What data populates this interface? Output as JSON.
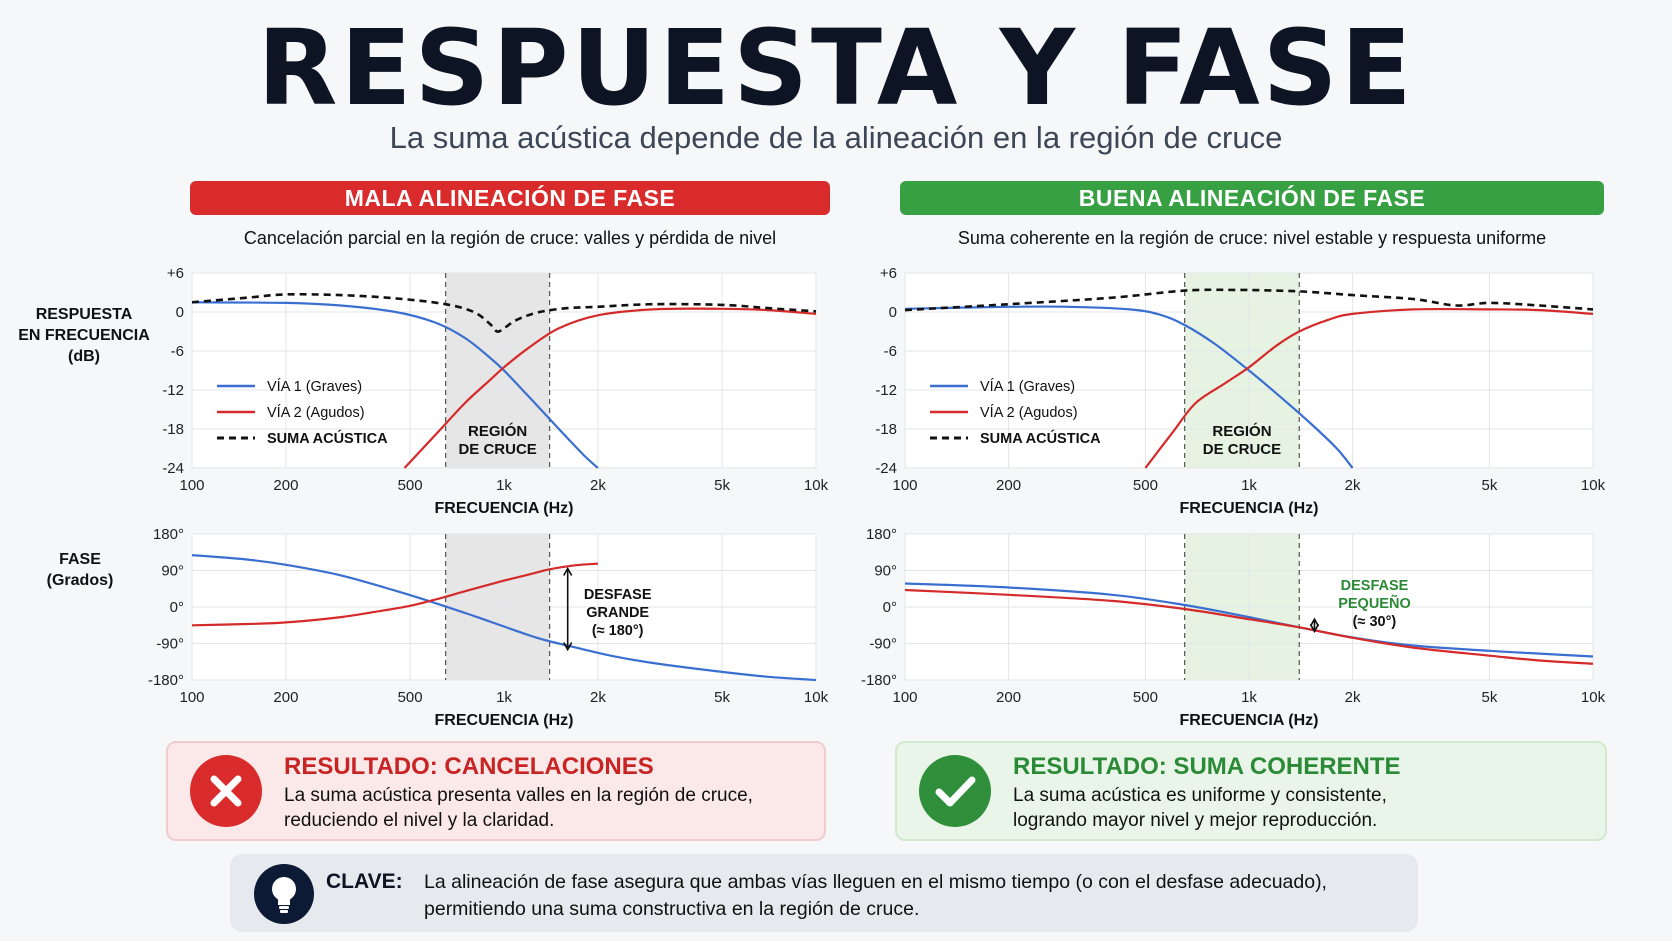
{
  "header": {
    "title": "RESPUESTA Y FASE",
    "subtitle": "La suma acústica depende de la alineación en la región de cruce"
  },
  "panels": {
    "bad": {
      "banner": "MALA ALINEACIÓN DE FASE",
      "caption": "Cancelación parcial en la región de cruce: valles y pérdida de nivel",
      "color": "#d92b2b"
    },
    "good": {
      "banner": "BUENA ALINEACIÓN DE FASE",
      "caption": "Suma coherente en la región de cruce: nivel estable y respuesta uniforme",
      "color": "#36a043"
    }
  },
  "side_labels": {
    "response": [
      "RESPUESTA",
      "EN FRECUENCIA",
      "(dB)"
    ],
    "phase": [
      "FASE",
      "(Grados)"
    ]
  },
  "results": {
    "bad": {
      "title": "RESULTADO: CANCELACIONES",
      "line1": "La suma acústica presenta valles en la región de cruce,",
      "line2": "reduciendo el nivel y la claridad."
    },
    "good": {
      "title": "RESULTADO: SUMA COHERENTE",
      "line1": "La suma acústica es uniforme y consistente,",
      "line2": "logrando mayor nivel y mejor reproducción."
    }
  },
  "key": {
    "title": "CLAVE:",
    "line1": "La alineación de fase asegura que ambas vías lleguen en el mismo tiempo (o con el desfase adecuado),",
    "line2": "permitiendo una suma constructiva en la región de cruce."
  },
  "colors": {
    "via1": "#3a6fd1",
    "via2": "#d42a2a",
    "suma": "#111111",
    "region_bad": "#e6e6e6",
    "region_good": "#e6f2e2"
  },
  "chart_data": [
    {
      "id": "bad-response",
      "type": "line",
      "xscale": "log",
      "xlabel": "FRECUENCIA (Hz)",
      "x_ticks": [
        100,
        200,
        500,
        1000,
        2000,
        5000,
        10000
      ],
      "x_tick_labels": [
        "100",
        "200",
        "500",
        "1k",
        "2k",
        "5k",
        "10k"
      ],
      "xlim": [
        100,
        10000
      ],
      "ylim": [
        -24,
        6
      ],
      "y_ticks": [
        6,
        0,
        -6,
        -12,
        -18,
        -24
      ],
      "y_tick_labels": [
        "+6",
        "0",
        "-6",
        "-12",
        "-18",
        "-24"
      ],
      "region": {
        "x": [
          650,
          1400
        ],
        "label": [
          "REGIÓN",
          "DE CRUCE"
        ]
      },
      "legend": {
        "placement": "left",
        "entries": [
          "VÍA 1 (Graves)",
          "VÍA 2 (Agudos)",
          "SUMA ACÚSTICA"
        ]
      },
      "series": [
        {
          "name": "VÍA 1 (Graves)",
          "x": [
            100,
            200,
            300,
            450,
            600,
            750,
            900,
            1000,
            1200,
            1500,
            1800,
            2000
          ],
          "y": [
            1.5,
            1.4,
            1,
            0,
            -1.6,
            -4,
            -7,
            -9,
            -13,
            -18,
            -22,
            -24
          ]
        },
        {
          "name": "VÍA 2 (Agudos)",
          "x": [
            480,
            600,
            750,
            900,
            1000,
            1200,
            1500,
            2000,
            3000,
            5000,
            7000,
            10000
          ],
          "y": [
            -24,
            -19,
            -14,
            -10.5,
            -8.5,
            -5.5,
            -2.5,
            -0.5,
            0.4,
            0.5,
            0.3,
            -0.3
          ]
        },
        {
          "name": "SUMA ACÚSTICA",
          "x": [
            100,
            150,
            200,
            300,
            450,
            650,
            800,
            900,
            950,
            1000,
            1100,
            1300,
            1600,
            2000,
            3000,
            5000,
            7000,
            10000
          ],
          "y": [
            1.5,
            2.2,
            2.7,
            2.6,
            2.1,
            1.2,
            0,
            -1.8,
            -3,
            -2.5,
            -1.2,
            0,
            0.6,
            0.8,
            1.2,
            1.1,
            0.6,
            0.1
          ]
        }
      ]
    },
    {
      "id": "good-response",
      "type": "line",
      "xscale": "log",
      "xlabel": "FRECUENCIA (Hz)",
      "x_ticks": [
        100,
        200,
        500,
        1000,
        2000,
        5000,
        10000
      ],
      "x_tick_labels": [
        "100",
        "200",
        "500",
        "1k",
        "2k",
        "5k",
        "10k"
      ],
      "xlim": [
        100,
        10000
      ],
      "ylim": [
        -24,
        6
      ],
      "y_ticks": [
        6,
        0,
        -6,
        -12,
        -18,
        -24
      ],
      "y_tick_labels": [
        "+6",
        "0",
        "-6",
        "-12",
        "-18",
        "-24"
      ],
      "region": {
        "x": [
          650,
          1400
        ],
        "label": [
          "REGIÓN",
          "DE CRUCE"
        ]
      },
      "legend": {
        "placement": "left",
        "entries": [
          "VÍA 1 (Graves)",
          "VÍA 2 (Agudos)",
          "SUMA ACÚSTICA"
        ]
      },
      "series": [
        {
          "name": "VÍA 1 (Graves)",
          "x": [
            100,
            200,
            300,
            450,
            550,
            650,
            800,
            1000,
            1200,
            1500,
            1800,
            2000
          ],
          "y": [
            0.5,
            0.8,
            0.8,
            0.4,
            -0.4,
            -2,
            -5,
            -9,
            -12.5,
            -17,
            -21,
            -24
          ]
        },
        {
          "name": "VÍA 2 (Agudos)",
          "x": [
            500,
            600,
            700,
            850,
            1000,
            1200,
            1400,
            1700,
            2000,
            3000,
            5000,
            7000,
            10000
          ],
          "y": [
            -24,
            -18.5,
            -14,
            -11,
            -8.5,
            -5.2,
            -3,
            -1.2,
            -0.3,
            0.4,
            0.4,
            0.3,
            -0.3
          ]
        },
        {
          "name": "SUMA ACÚSTICA",
          "x": [
            100,
            200,
            400,
            650,
            900,
            1200,
            1500,
            2000,
            3000,
            4000,
            5000,
            7000,
            10000
          ],
          "y": [
            0.3,
            1.2,
            2.2,
            3.3,
            3.4,
            3.3,
            3.1,
            2.6,
            2,
            1,
            1.4,
            1,
            0.4
          ]
        }
      ]
    },
    {
      "id": "bad-phase",
      "type": "line",
      "xscale": "log",
      "xlabel": "FRECUENCIA (Hz)",
      "x_ticks": [
        100,
        200,
        500,
        1000,
        2000,
        5000,
        10000
      ],
      "x_tick_labels": [
        "100",
        "200",
        "500",
        "1k",
        "2k",
        "5k",
        "10k"
      ],
      "xlim": [
        100,
        10000
      ],
      "ylim": [
        -180,
        180
      ],
      "y_ticks": [
        180,
        90,
        0,
        -90,
        -180
      ],
      "y_tick_labels": [
        "180°",
        "90°",
        "0°",
        "-90°",
        "-180°"
      ],
      "region": {
        "x": [
          650,
          1400
        ]
      },
      "annotation": {
        "label": [
          "DESFASE",
          "GRANDE",
          "(≈ 180°)"
        ],
        "x": 1600,
        "y_range": [
          -105,
          95
        ]
      },
      "series": [
        {
          "name": "VÍA 1 (Graves)",
          "x": [
            100,
            150,
            200,
            300,
            450,
            600,
            800,
            1000,
            1300,
            1700,
            2200,
            3000,
            5000,
            7000,
            10000
          ],
          "y": [
            128,
            117,
            104,
            78,
            40,
            10,
            -22,
            -48,
            -78,
            -100,
            -120,
            -138,
            -160,
            -172,
            -180
          ]
        },
        {
          "name": "VÍA 2 (Agudos)",
          "x": [
            100,
            150,
            200,
            300,
            400,
            500,
            600,
            800,
            1000,
            1200,
            1400,
            1700,
            2000
          ],
          "y": [
            -45,
            -42,
            -38,
            -25,
            -10,
            3,
            18,
            45,
            65,
            80,
            93,
            103,
            107
          ]
        }
      ]
    },
    {
      "id": "good-phase",
      "type": "line",
      "xscale": "log",
      "xlabel": "FRECUENCIA (Hz)",
      "x_ticks": [
        100,
        200,
        500,
        1000,
        2000,
        5000,
        10000
      ],
      "x_tick_labels": [
        "100",
        "200",
        "500",
        "1k",
        "2k",
        "5k",
        "10k"
      ],
      "xlim": [
        100,
        10000
      ],
      "ylim": [
        -180,
        180
      ],
      "y_ticks": [
        180,
        90,
        0,
        -90,
        -180
      ],
      "y_tick_labels": [
        "180°",
        "90°",
        "0°",
        "-90°",
        "-180°"
      ],
      "region": {
        "x": [
          650,
          1400
        ]
      },
      "annotation": {
        "label": [
          "DESFASE",
          "PEQUEÑO",
          "(≈ 30°)"
        ],
        "x": 1550,
        "y_range": [
          -60,
          -30
        ]
      },
      "series": [
        {
          "name": "VÍA 1 (Graves)",
          "x": [
            100,
            200,
            400,
            650,
            1000,
            1400,
            2000,
            3000,
            5000,
            7000,
            10000
          ],
          "y": [
            58,
            48,
            30,
            5,
            -25,
            -50,
            -75,
            -95,
            -108,
            -115,
            -122
          ]
        },
        {
          "name": "VÍA 2 (Agudos)",
          "x": [
            100,
            200,
            400,
            650,
            1000,
            1400,
            2000,
            3000,
            5000,
            7000,
            10000
          ],
          "y": [
            42,
            30,
            15,
            -5,
            -30,
            -50,
            -76,
            -100,
            -120,
            -132,
            -140
          ]
        }
      ]
    }
  ]
}
